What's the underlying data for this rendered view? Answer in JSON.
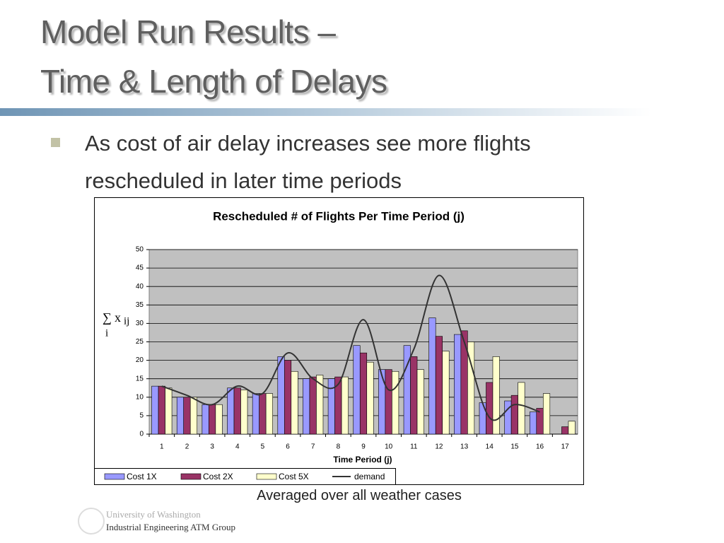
{
  "slide": {
    "title_line1": "Model Run Results –",
    "title_line2": "Time & Length of Delays",
    "bullet": "As cost of air delay increases see more flights rescheduled in later time periods",
    "caption": "Averaged over all weather cases",
    "footer_line1": "University of Washington",
    "footer_line2": "Industrial Engineering ATM Group"
  },
  "chart_data": {
    "type": "bar",
    "title": "Rescheduled # of Flights Per Time Period (j)",
    "xlabel": "Time Period (j)",
    "ylabel": {
      "symbol": "∑",
      "var": "x",
      "sub": "ij",
      "index": "i"
    },
    "categories": [
      "1",
      "2",
      "3",
      "4",
      "5",
      "6",
      "7",
      "8",
      "9",
      "10",
      "11",
      "12",
      "13",
      "14",
      "15",
      "16",
      "17"
    ],
    "series": [
      {
        "name": "Cost 1X",
        "color": "#9999ff",
        "values": [
          13,
          10,
          8,
          12.5,
          11,
          21,
          15,
          15,
          24,
          17.5,
          24,
          31.5,
          27,
          8.5,
          9,
          6,
          0
        ]
      },
      {
        "name": "Cost 2X",
        "color": "#993366",
        "values": [
          13,
          10,
          8,
          12.5,
          11,
          20,
          15.5,
          15.5,
          22,
          17.5,
          21,
          26.5,
          28,
          14,
          10.5,
          7,
          2
        ]
      },
      {
        "name": "Cost 5X",
        "color": "#ffffcc",
        "values": [
          12.5,
          10,
          8,
          12,
          11,
          17,
          16,
          15.5,
          19.5,
          17,
          17.5,
          22.5,
          25,
          21,
          14,
          11,
          3.5
        ]
      },
      {
        "name": "demand",
        "type": "line",
        "color": "#333333",
        "values": [
          13,
          10.5,
          8,
          13,
          11,
          22,
          15,
          13.5,
          31,
          12,
          23,
          43,
          25,
          4.5,
          8,
          6,
          null
        ]
      }
    ],
    "ylim": [
      0,
      50
    ],
    "yticks": [
      0,
      5,
      10,
      15,
      20,
      25,
      30,
      35,
      40,
      45,
      50
    ],
    "grid": true,
    "plot_background": "#c0c0c0",
    "legend": "bottom"
  }
}
